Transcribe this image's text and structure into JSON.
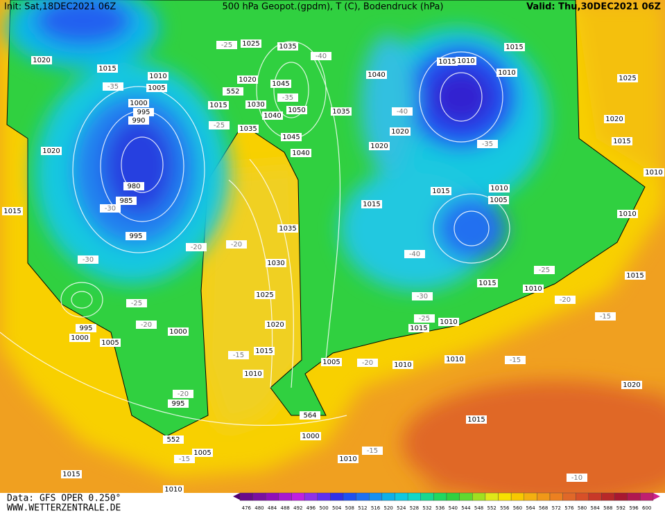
{
  "header": {
    "init": "Init: Sat,18DEC2021 06Z",
    "title": "500 hPa Geopot.(gpdm), T (C), Bodendruck (hPa)",
    "valid": "Valid: Thu,30DEC2021 06Z"
  },
  "footer": {
    "data": "Data: GFS OPER 0.250°",
    "site": "WWW.WETTERZENTRALE.DE"
  },
  "colorbar": {
    "labels": [
      476,
      480,
      484,
      488,
      492,
      496,
      500,
      504,
      508,
      512,
      516,
      520,
      524,
      528,
      532,
      536,
      540,
      544,
      548,
      552,
      556,
      560,
      564,
      568,
      572,
      576,
      580,
      584,
      588,
      592,
      596,
      600
    ]
  },
  "map": {
    "pressure_labels": [
      1020,
      1015,
      1010,
      1005,
      1000,
      995,
      990,
      1020,
      980,
      985,
      995,
      1025,
      1035,
      1020,
      1015,
      1030,
      1040,
      1045,
      1050,
      1035,
      1045,
      1040,
      1040,
      1035,
      1015,
      1010,
      1010,
      1015,
      1025,
      1020,
      1015,
      1020,
      1020,
      1015,
      1010,
      1005,
      1015,
      1010,
      1035,
      1030,
      1025,
      1020,
      1015,
      1010,
      995,
      1000,
      1005,
      1000,
      995,
      1005,
      1010,
      1010,
      1010,
      1015,
      1015,
      1010,
      1015,
      1020,
      1015,
      1000,
      1010,
      1005,
      1015,
      1010,
      1015,
      1010
    ],
    "temperature_labels": [
      -35,
      -30,
      -30,
      -25,
      -20,
      -20,
      -20,
      -15,
      -20,
      -25,
      -25,
      -40,
      -40,
      -35,
      -40,
      -35,
      -30,
      -25,
      -25,
      -20,
      -15,
      -15,
      -20,
      -15,
      -15,
      -10
    ],
    "height_labels": [
      552,
      564,
      552
    ]
  }
}
